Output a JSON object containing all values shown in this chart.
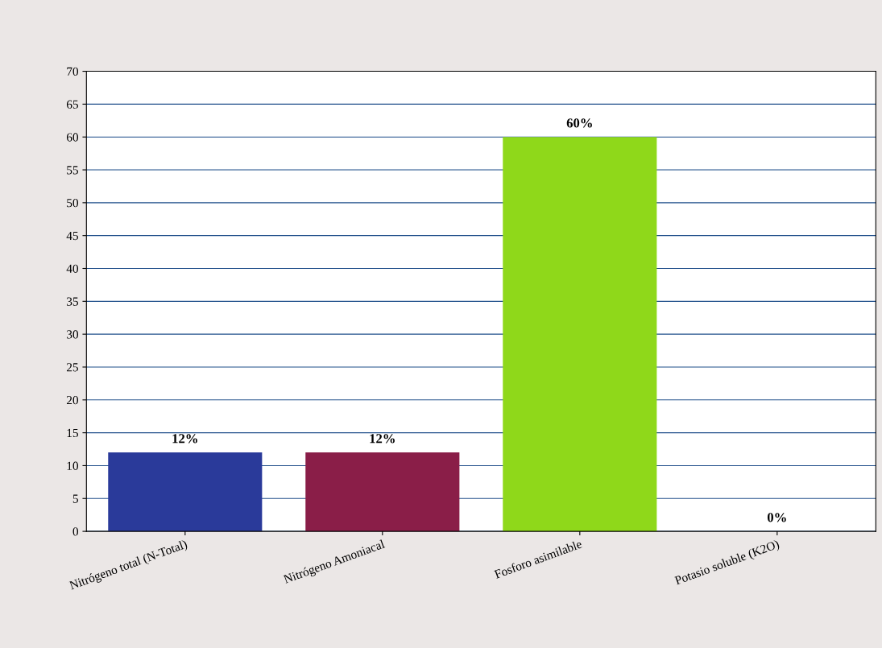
{
  "chart_data": {
    "type": "bar",
    "categories": [
      "Nitrógeno total (N-Total)",
      "Nitrógeno Amoniacal",
      "Fosforo asimilable",
      "Potasio soluble (K2O)"
    ],
    "values": [
      12,
      12,
      60,
      0
    ],
    "colors": [
      "#2a3a9a",
      "#8a1e48",
      "#8fd81a",
      "#1ab0a8"
    ],
    "value_labels": [
      "12%",
      "12%",
      "60%",
      "0%"
    ],
    "ylim": [
      0,
      70
    ],
    "yticks": [
      0,
      5,
      10,
      15,
      20,
      25,
      30,
      35,
      40,
      45,
      50,
      55,
      60,
      65,
      70
    ],
    "grid": "y",
    "legend": false
  }
}
